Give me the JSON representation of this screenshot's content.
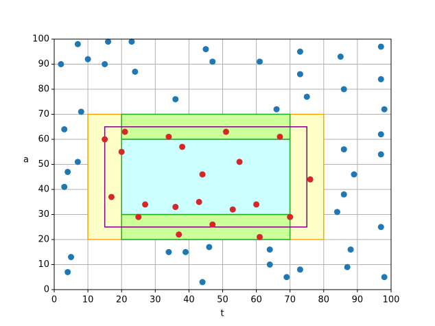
{
  "chart_data": {
    "type": "scatter",
    "xlabel": "t",
    "ylabel": "a",
    "xlim": [
      0,
      100
    ],
    "ylim": [
      0,
      100
    ],
    "xticks": [
      0,
      10,
      20,
      30,
      40,
      50,
      60,
      70,
      80,
      90,
      100
    ],
    "yticks": [
      0,
      10,
      20,
      30,
      40,
      50,
      60,
      70,
      80,
      90,
      100
    ],
    "grid": true,
    "regions": [
      {
        "x": [
          10,
          80
        ],
        "y": [
          20,
          70
        ],
        "fill": "#ffffc8",
        "edge": "#ffa500"
      },
      {
        "x": [
          20,
          70
        ],
        "y": [
          60,
          70
        ],
        "fill": "#ccff99",
        "edge": "#22aa22"
      },
      {
        "x": [
          20,
          70
        ],
        "y": [
          20,
          30
        ],
        "fill": "#ccff99",
        "edge": "#22aa22"
      },
      {
        "x": [
          20,
          70
        ],
        "y": [
          30,
          60
        ],
        "fill": "#ccffff",
        "edge": "#22aa22"
      },
      {
        "x": [
          15,
          75
        ],
        "y": [
          25,
          65
        ],
        "fill": "none",
        "edge": "#800080"
      }
    ],
    "series": [
      {
        "color": "#1f77b4",
        "x": [
          2,
          7,
          16,
          23,
          10,
          15,
          24,
          45,
          47,
          61,
          73,
          85,
          97,
          97,
          86,
          73,
          75,
          66,
          36,
          8,
          3,
          7,
          4,
          3,
          97,
          98,
          86,
          97,
          89,
          86,
          84,
          97,
          88,
          87,
          98,
          73,
          69,
          64,
          64,
          46,
          34,
          39,
          44,
          5,
          4
        ],
        "values": [
          90,
          98,
          99,
          99,
          92,
          90,
          87,
          96,
          91,
          91,
          95,
          93,
          97,
          84,
          80,
          86,
          77,
          72,
          76,
          71,
          64,
          51,
          47,
          41,
          62,
          72,
          56,
          54,
          46,
          38,
          31,
          25,
          16,
          9,
          5,
          8,
          5,
          16,
          10,
          17,
          15,
          15,
          3,
          13,
          7
        ]
      },
      {
        "color": "#d62728",
        "x": [
          15,
          21,
          20,
          17,
          27,
          25,
          34,
          38,
          36,
          37,
          44,
          43,
          47,
          51,
          55,
          53,
          60,
          61,
          67,
          76,
          70
        ],
        "values": [
          60,
          63,
          55,
          37,
          34,
          29,
          61,
          57,
          33,
          22,
          46,
          35,
          26,
          63,
          51,
          32,
          34,
          21,
          61,
          44,
          29
        ]
      }
    ]
  }
}
